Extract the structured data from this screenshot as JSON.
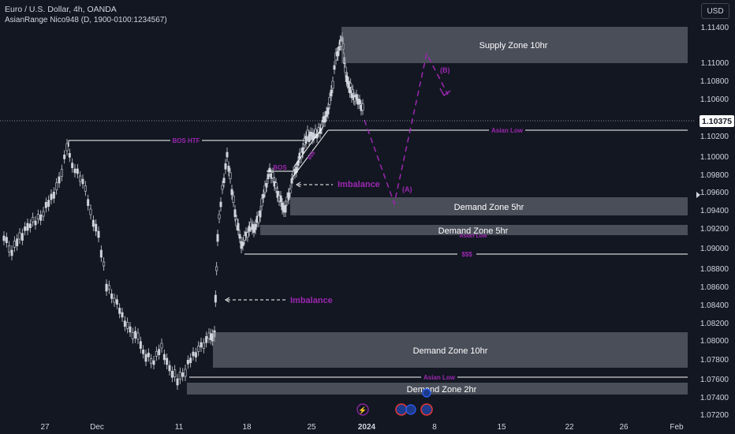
{
  "header": {
    "title": "Euro / U.S. Dollar, 4h, OANDA",
    "indicator": "AsianRange Nico948 (D, 1900-0100:1234567)"
  },
  "toolbar": {
    "currency_label": "USD"
  },
  "price_scale": {
    "ticks": [
      "1.11400",
      "1.11000",
      "1.10800",
      "1.10600",
      "1.10200",
      "1.10000",
      "1.09800",
      "1.09600",
      "1.09400",
      "1.09200",
      "1.09000",
      "1.08800",
      "1.08600",
      "1.08400",
      "1.08200",
      "1.08000",
      "1.07800",
      "1.07600",
      "1.07400",
      "1.07200"
    ],
    "current_price": "1.10375"
  },
  "time_scale": {
    "labels": [
      "27",
      "Dec",
      "11",
      "18",
      "25",
      "2024",
      "8",
      "15",
      "22",
      "26",
      "Feb"
    ]
  },
  "zones": [
    {
      "label": "Supply Zone 10hr"
    },
    {
      "label": "Demand Zone 5hr"
    },
    {
      "label": "Demand Zone 5hr"
    },
    {
      "label": "Demand Zone 10hr"
    },
    {
      "label": "Demand Zone 2hr"
    }
  ],
  "annotations": {
    "bos_htf": "BOS HTF",
    "bos": "BOS",
    "ss_small": "$$$",
    "asian_low_1": "Asian Low",
    "asian_low_2": "Asian Low",
    "asian_low_3": "Asian Low",
    "sss": "$$$",
    "imbalance_1": "Imbalance",
    "imbalance_2": "Imbalance",
    "point_a": "(A)",
    "point_b": "(B)"
  },
  "colors": {
    "background": "#131722",
    "candle": "#d1d4dc",
    "zone_fill": "#787b86",
    "annotation": "#9c27b0",
    "line": "#ffffff"
  }
}
